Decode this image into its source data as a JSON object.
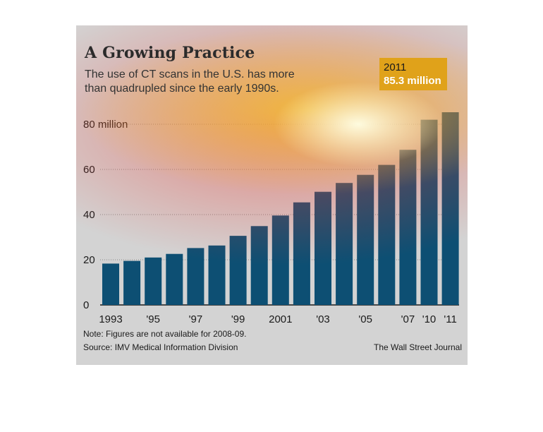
{
  "header": {
    "title": "A Growing Practice",
    "subtitle": "The use of CT scans in the U.S. has more than quadrupled since the early 1990s."
  },
  "callout": {
    "year": "2011",
    "value": "85.3 million"
  },
  "footer": {
    "note": "Note: Figures are not available for 2008-09.",
    "source": "Source: IMV Medical Information Division",
    "brand": "The Wall Street Journal"
  },
  "colors": {
    "bar": "#0d4f73",
    "background": "#d3d3d3",
    "callout": "#e0a21a"
  },
  "chart_data": {
    "type": "bar",
    "title": "A Growing Practice",
    "subtitle": "The use of CT scans in the U.S. has more than quadrupled since the early 1990s.",
    "categories": [
      "1993",
      "1994",
      "1995",
      "1996",
      "1997",
      "1998",
      "1999",
      "2000",
      "2001",
      "2002",
      "2003",
      "2004",
      "2005",
      "2006",
      "2007",
      "2010",
      "2011"
    ],
    "tick_labels": [
      "1993",
      "",
      "'95",
      "",
      "'97",
      "",
      "'99",
      "",
      "2001",
      "",
      "'03",
      "",
      "'05",
      "",
      "'07",
      "'10",
      "'11"
    ],
    "values": [
      18.3,
      19.5,
      21.0,
      22.6,
      25.2,
      26.3,
      30.6,
      34.9,
      39.6,
      45.4,
      50.1,
      54.0,
      57.6,
      62.0,
      68.7,
      82.0,
      85.3
    ],
    "ylim": [
      0,
      85
    ],
    "yticks": [
      0,
      20,
      40,
      60,
      80
    ],
    "ytick_labels": [
      "0",
      "20",
      "40",
      "60",
      "80 million"
    ],
    "grid": true
  }
}
